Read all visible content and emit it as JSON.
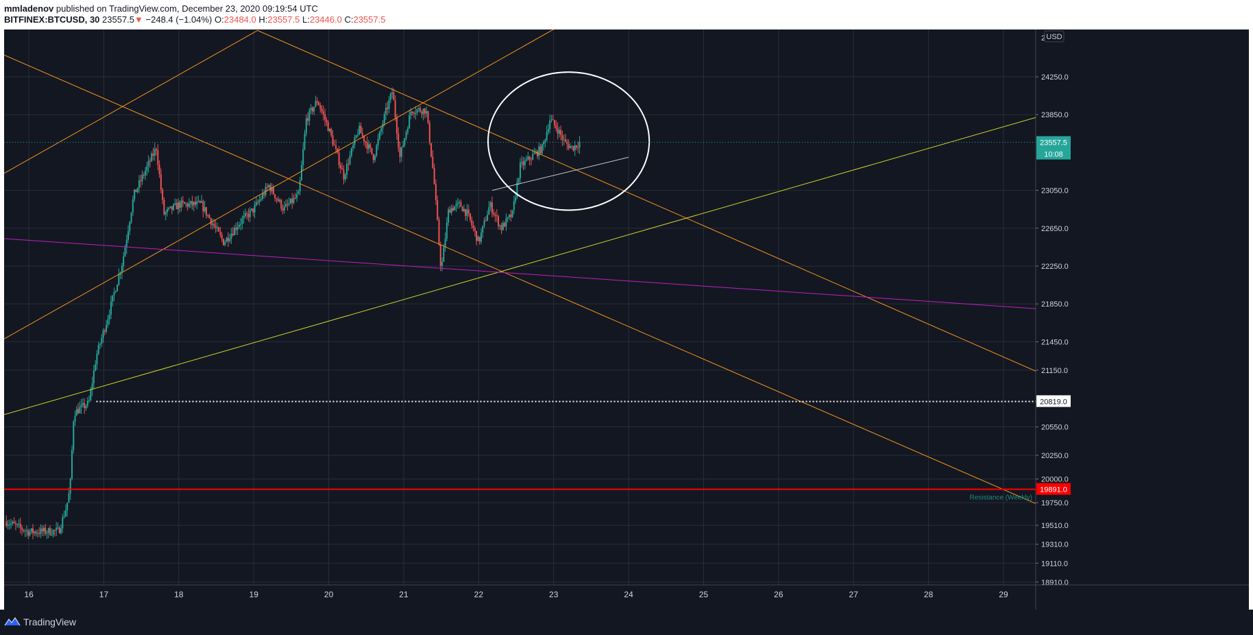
{
  "header": {
    "author": "mmladenov",
    "published_text": "published on TradingView.com, December 23, 2020 09:19:54 UTC",
    "symbol": "BITFINEX:BTCUSD, 30",
    "last": "23557.5",
    "change_arrow": "▼",
    "change": "−248.4 (−1.04%)",
    "open_label": "O:",
    "open": "23484.0",
    "high_label": "H:",
    "high": "23557.5",
    "low_label": "L:",
    "low": "23446.0",
    "close_label": "C:",
    "close": "23557.5"
  },
  "footer": {
    "brand": "TradingView"
  },
  "colors": {
    "background": "#131722",
    "grid": "#2a2e39",
    "up": "#26a69a",
    "down": "#ef5350",
    "orange": "#f7931a",
    "yellow": "#d4d42a",
    "magenta": "#c21fc2",
    "red_line": "#ff0000"
  },
  "chart_data": {
    "type": "candlestick",
    "currency_label": "USD",
    "x_ticks": [
      "16",
      "17",
      "18",
      "19",
      "20",
      "21",
      "22",
      "23",
      "24",
      "25",
      "26",
      "27",
      "28",
      "29"
    ],
    "y_ticks": [
      "24250.0",
      "23850.0",
      "23050.0",
      "22650.0",
      "22250.0",
      "21850.0",
      "21450.0",
      "21150.0",
      "20550.0",
      "20250.0",
      "20000.0",
      "19750.0",
      "19510.0",
      "19310.0",
      "19110.0",
      "18910.0"
    ],
    "y_ticks_partial": [
      "2"
    ],
    "price_labels": [
      {
        "text": "23557.5",
        "kind": "last"
      },
      {
        "text": "10:08",
        "kind": "countdown"
      },
      {
        "text": "20819.0",
        "kind": "dotted-level"
      },
      {
        "text": "19891.0",
        "kind": "resistance"
      }
    ],
    "annotations": [
      "Resistance (Weekly)"
    ],
    "trend_lines": [
      {
        "color": "orange",
        "from": [
          15.67,
          23230
        ],
        "to": [
          19.05,
          24740
        ]
      },
      {
        "color": "orange",
        "from": [
          15.67,
          21480
        ],
        "to": [
          23.22,
          24850
        ]
      },
      {
        "color": "orange",
        "from": [
          15.67,
          24480
        ],
        "to": [
          29.43,
          19740
        ]
      },
      {
        "color": "orange",
        "from": [
          19.05,
          24740
        ],
        "to": [
          29.43,
          21140
        ]
      },
      {
        "color": "yellow",
        "from": [
          15.67,
          20680
        ],
        "to": [
          29.43,
          23820
        ]
      },
      {
        "color": "magenta",
        "from": [
          15.67,
          22540
        ],
        "to": [
          29.43,
          21800
        ]
      },
      {
        "color": "white",
        "from": [
          22.18,
          23050
        ],
        "to": [
          24.0,
          23400
        ]
      }
    ],
    "levels": [
      {
        "price": 20819,
        "color": "white",
        "style": "dotted"
      },
      {
        "price": 19891,
        "color": "red",
        "style": "solid"
      }
    ],
    "ylim": [
      18880,
      24750
    ],
    "xlim": [
      15.67,
      29.43
    ],
    "key_points": [
      [
        15.7,
        19550
      ],
      [
        16.0,
        19440
      ],
      [
        16.4,
        19450
      ],
      [
        16.5,
        19700
      ],
      [
        16.55,
        19900
      ],
      [
        16.6,
        20700
      ],
      [
        16.8,
        20800
      ],
      [
        16.9,
        21300
      ],
      [
        17.05,
        21700
      ],
      [
        17.25,
        22300
      ],
      [
        17.4,
        23000
      ],
      [
        17.7,
        23500
      ],
      [
        17.8,
        22800
      ],
      [
        18.0,
        22900
      ],
      [
        18.3,
        22900
      ],
      [
        18.6,
        22500
      ],
      [
        18.8,
        22700
      ],
      [
        19.0,
        22850
      ],
      [
        19.2,
        23100
      ],
      [
        19.4,
        22850
      ],
      [
        19.6,
        23000
      ],
      [
        19.7,
        23800
      ],
      [
        19.85,
        24000
      ],
      [
        20.0,
        23700
      ],
      [
        20.2,
        23200
      ],
      [
        20.4,
        23700
      ],
      [
        20.6,
        23400
      ],
      [
        20.75,
        23850
      ],
      [
        20.85,
        24100
      ],
      [
        20.95,
        23400
      ],
      [
        21.1,
        23900
      ],
      [
        21.3,
        23900
      ],
      [
        21.4,
        23200
      ],
      [
        21.5,
        22200
      ],
      [
        21.6,
        22850
      ],
      [
        21.75,
        22900
      ],
      [
        21.85,
        22800
      ],
      [
        22.0,
        22500
      ],
      [
        22.15,
        22900
      ],
      [
        22.3,
        22650
      ],
      [
        22.45,
        22800
      ],
      [
        22.55,
        23300
      ],
      [
        22.7,
        23400
      ],
      [
        22.85,
        23500
      ],
      [
        22.95,
        23800
      ],
      [
        23.05,
        23700
      ],
      [
        23.15,
        23550
      ],
      [
        23.25,
        23500
      ],
      [
        23.35,
        23557
      ]
    ]
  }
}
